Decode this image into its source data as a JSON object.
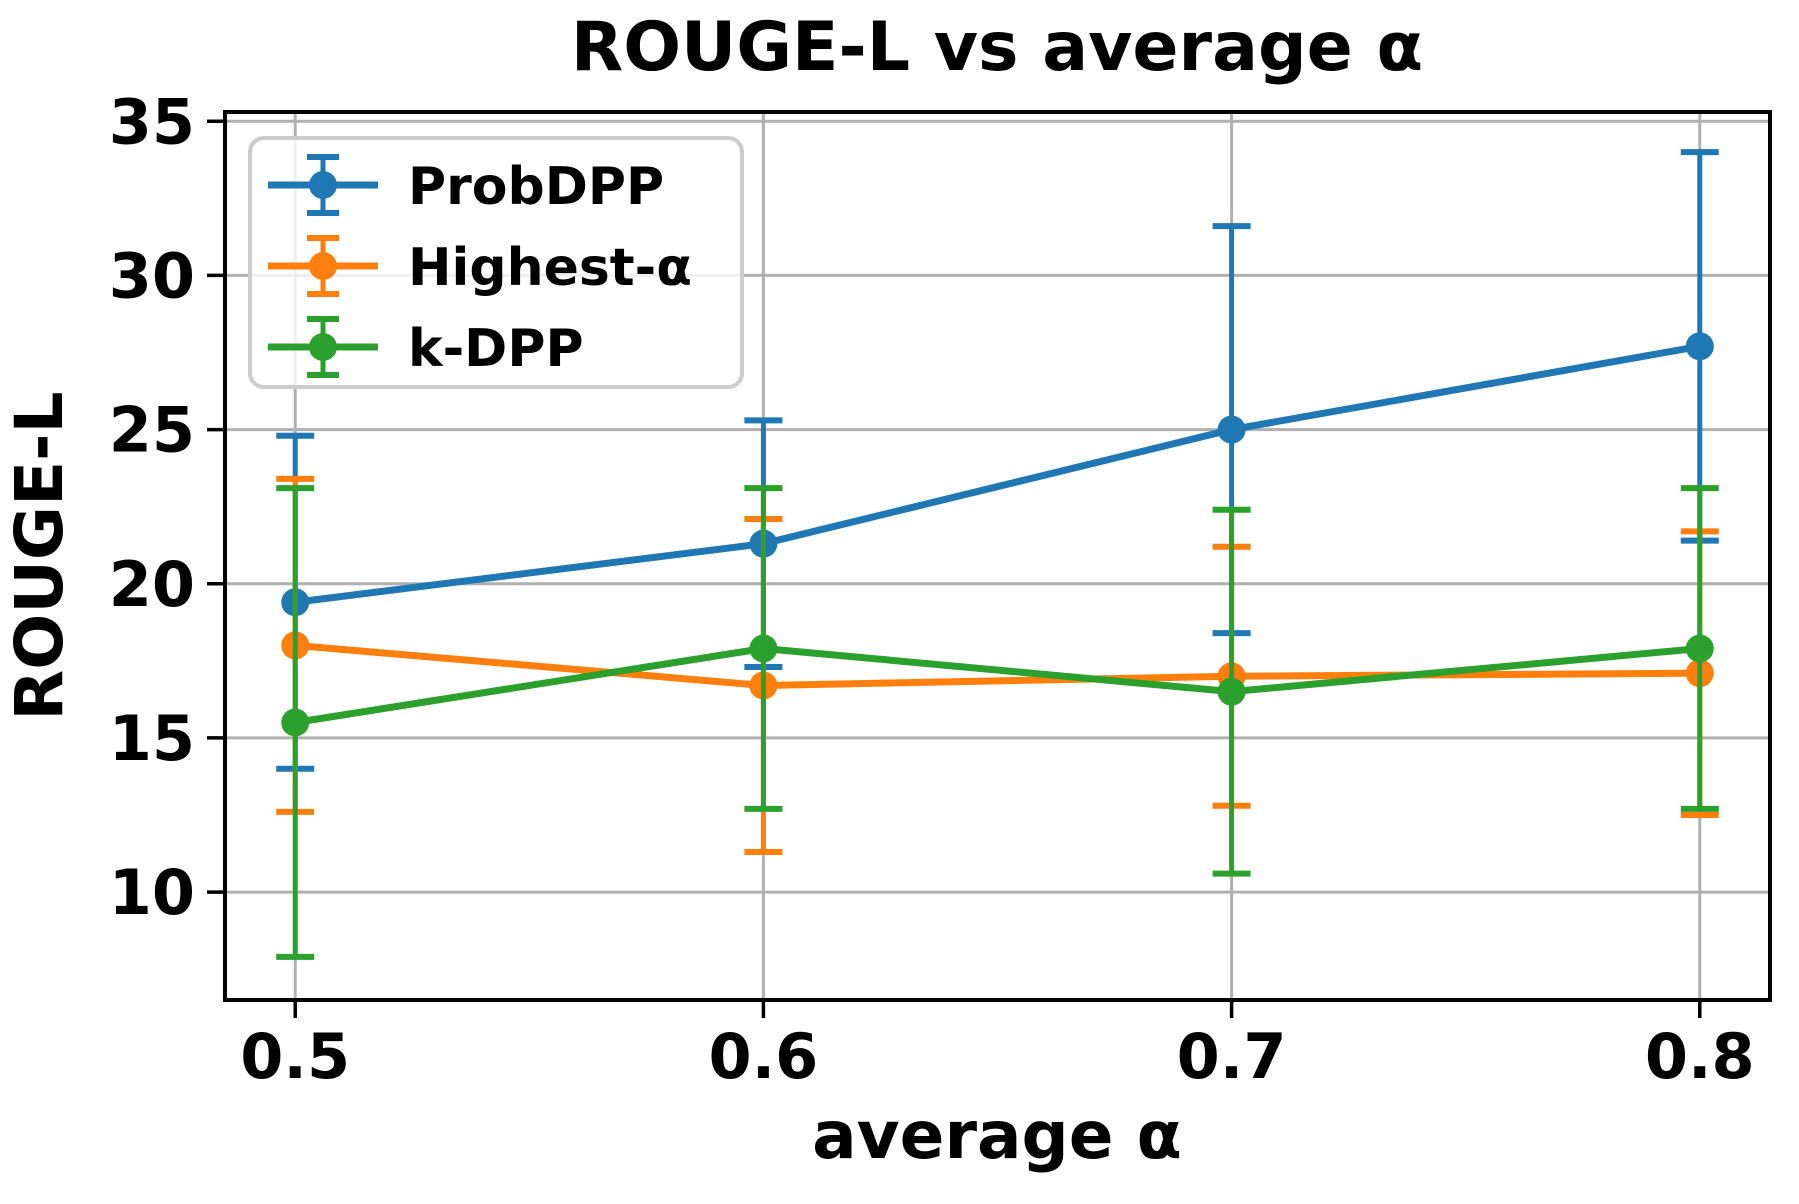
{
  "figure": {
    "background": "#ffffff"
  },
  "chart_data": {
    "type": "line",
    "title": "ROUGE-L vs average α",
    "xlabel": "average α",
    "ylabel": "ROUGE-L",
    "x": [
      0.5,
      0.6,
      0.7,
      0.8
    ],
    "xticks": [
      0.5,
      0.6,
      0.7,
      0.8
    ],
    "xtick_labels": [
      "0.5",
      "0.6",
      "0.7",
      "0.8"
    ],
    "yticks": [
      10,
      15,
      20,
      25,
      30,
      35
    ],
    "ytick_labels": [
      "10",
      "15",
      "20",
      "25",
      "30",
      "35"
    ],
    "xlim": [
      0.485,
      0.815
    ],
    "ylim": [
      6.5,
      35.3
    ],
    "grid": true,
    "grid_color": "#b0b0b0",
    "legend_position": "upper-left",
    "series": [
      {
        "name": "ProbDPP",
        "color": "#1f77b4",
        "values": [
          19.4,
          21.3,
          25.0,
          27.7
        ],
        "errors": [
          5.4,
          4.0,
          6.6,
          6.3
        ]
      },
      {
        "name": "Highest-α",
        "color": "#ff7f0e",
        "values": [
          18.0,
          16.7,
          17.0,
          17.1
        ],
        "errors": [
          5.4,
          5.4,
          4.2,
          4.6
        ]
      },
      {
        "name": "k-DPP",
        "color": "#2ca02c",
        "values": [
          15.5,
          17.9,
          16.5,
          17.9
        ],
        "errors": [
          7.6,
          5.2,
          5.9,
          5.2
        ]
      }
    ]
  }
}
